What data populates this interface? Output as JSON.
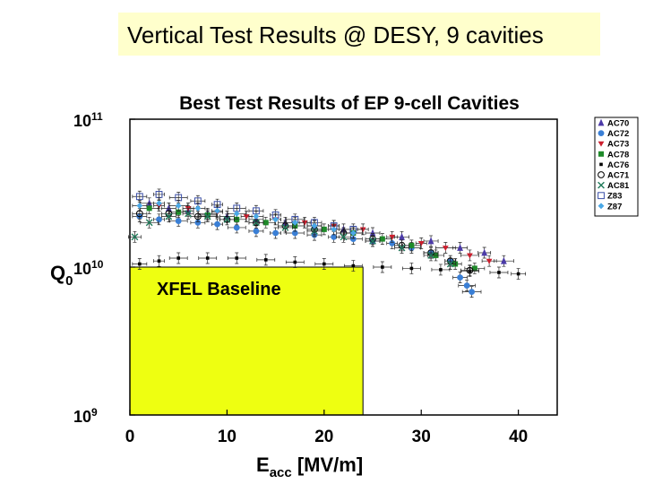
{
  "slide": {
    "title": "Vertical Test Results @ DESY, 9 cavities"
  },
  "chart_data": {
    "type": "scatter",
    "title": "Best Test Results of EP 9-cell Cavities",
    "xlabel_main": "E",
    "xlabel_sub": "acc",
    "xlabel_unit": " [MV/m]",
    "ylabel_main": "Q",
    "ylabel_sub": "0",
    "xlim": [
      0,
      44
    ],
    "ylim": [
      1000000000.0,
      100000000000.0
    ],
    "yscale": "log",
    "xticks": [
      "0",
      "10",
      "20",
      "30",
      "40"
    ],
    "yticks": [
      {
        "base": "10",
        "exp": "9"
      },
      {
        "base": "10",
        "exp": "10"
      },
      {
        "base": "10",
        "exp": "11"
      }
    ],
    "error_bars": true,
    "legend_position": "right",
    "baseline": {
      "label": "XFEL Baseline",
      "x_max": 24,
      "q_max": 10000000000.0,
      "color": "#eeff11"
    },
    "series": [
      {
        "name": "AC70",
        "marker": "triangle",
        "color": "#4b3aa8",
        "points": [
          [
            2,
            27000000000.0
          ],
          [
            4,
            25000000000.0
          ],
          [
            6,
            24000000000.0
          ],
          [
            8,
            23000000000.0
          ],
          [
            10,
            22000000000.0
          ],
          [
            13,
            21000000000.0
          ],
          [
            16,
            20000000000.0
          ],
          [
            19,
            19000000000.0
          ],
          [
            22,
            18000000000.0
          ],
          [
            25,
            17000000000.0
          ],
          [
            28,
            16000000000.0
          ],
          [
            31,
            15000000000.0
          ],
          [
            34,
            13500000000.0
          ],
          [
            36.5,
            12500000000.0
          ],
          [
            38.5,
            11000000000.0
          ]
        ]
      },
      {
        "name": "AC72",
        "marker": "circle",
        "color": "#3a7fd6",
        "points": [
          [
            1,
            22000000000.0
          ],
          [
            3,
            21000000000.0
          ],
          [
            5,
            20500000000.0
          ],
          [
            7,
            20000000000.0
          ],
          [
            9,
            19500000000.0
          ],
          [
            11,
            18500000000.0
          ],
          [
            13,
            17500000000.0
          ],
          [
            15,
            17000000000.0
          ],
          [
            17,
            17000000000.0
          ],
          [
            19,
            16500000000.0
          ],
          [
            21,
            16000000000.0
          ],
          [
            23,
            15500000000.0
          ],
          [
            25,
            15000000000.0
          ],
          [
            27,
            14500000000.0
          ],
          [
            29,
            13500000000.0
          ],
          [
            31,
            12500000000.0
          ],
          [
            33,
            11000000000.0
          ],
          [
            34,
            8500000000.0
          ],
          [
            34.7,
            7500000000.0
          ],
          [
            35.2,
            6800000000.0
          ]
        ]
      },
      {
        "name": "AC73",
        "marker": "heart",
        "color": "#cc1f2e",
        "points": [
          [
            3,
            26000000000.0
          ],
          [
            6,
            25000000000.0
          ],
          [
            9,
            23500000000.0
          ],
          [
            12,
            22000000000.0
          ],
          [
            15,
            21000000000.0
          ],
          [
            18,
            20000000000.0
          ],
          [
            21,
            19000000000.0
          ],
          [
            24,
            18000000000.0
          ],
          [
            27,
            16000000000.0
          ],
          [
            30,
            14500000000.0
          ],
          [
            32.5,
            13500000000.0
          ],
          [
            35,
            12000000000.0
          ],
          [
            37,
            11000000000.0
          ]
        ]
      },
      {
        "name": "AC78",
        "marker": "square",
        "color": "#1f8a2a",
        "points": [
          [
            2,
            25000000000.0
          ],
          [
            5,
            23500000000.0
          ],
          [
            8,
            22500000000.0
          ],
          [
            11,
            21000000000.0
          ],
          [
            14,
            20000000000.0
          ],
          [
            17,
            19000000000.0
          ],
          [
            20,
            18000000000.0
          ],
          [
            23,
            17000000000.0
          ],
          [
            26,
            15500000000.0
          ],
          [
            29,
            14000000000.0
          ],
          [
            31.5,
            12000000000.0
          ],
          [
            33.5,
            10500000000.0
          ],
          [
            35.5,
            9800000000.0
          ]
        ]
      },
      {
        "name": "AC76",
        "marker": "dot",
        "color": "#000000",
        "points": [
          [
            1,
            10500000000.0
          ],
          [
            3,
            11000000000.0
          ],
          [
            5,
            11500000000.0
          ],
          [
            8,
            11500000000.0
          ],
          [
            11,
            11500000000.0
          ],
          [
            14,
            11200000000.0
          ],
          [
            17,
            10800000000.0
          ],
          [
            20,
            10500000000.0
          ],
          [
            23,
            10200000000.0
          ],
          [
            26,
            10000000000.0
          ],
          [
            29,
            9800000000.0
          ],
          [
            32,
            9600000000.0
          ],
          [
            35,
            9400000000.0
          ],
          [
            38,
            9200000000.0
          ],
          [
            40,
            9000000000.0
          ]
        ]
      },
      {
        "name": "AC71",
        "marker": "open-circle",
        "color": "#000000",
        "points": [
          [
            1,
            23000000000.0
          ],
          [
            4,
            23000000000.0
          ],
          [
            7,
            22000000000.0
          ],
          [
            10,
            21000000000.0
          ],
          [
            13,
            20000000000.0
          ],
          [
            16,
            19000000000.0
          ],
          [
            19,
            18000000000.0
          ],
          [
            22,
            17000000000.0
          ],
          [
            25,
            15500000000.0
          ],
          [
            28,
            14000000000.0
          ],
          [
            31,
            12500000000.0
          ],
          [
            33,
            11000000000.0
          ],
          [
            35,
            9500000000.0
          ]
        ]
      },
      {
        "name": "AC81",
        "marker": "x",
        "color": "#1f7a5a",
        "points": [
          [
            0.5,
            16000000000.0
          ],
          [
            2,
            20000000000.0
          ],
          [
            4,
            22000000000.0
          ],
          [
            6,
            23000000000.0
          ],
          [
            8,
            22000000000.0
          ],
          [
            10,
            21000000000.0
          ],
          [
            13,
            20000000000.0
          ],
          [
            16,
            18500000000.0
          ],
          [
            19,
            17500000000.0
          ],
          [
            22,
            16000000000.0
          ],
          [
            25,
            15000000000.0
          ],
          [
            28,
            13500000000.0
          ],
          [
            31,
            12000000000.0
          ],
          [
            33,
            10500000000.0
          ]
        ]
      },
      {
        "name": "Z83",
        "marker": "open-square",
        "color": "#3a4fa8",
        "points": [
          [
            1,
            30000000000.0
          ],
          [
            3,
            31000000000.0
          ],
          [
            5,
            29500000000.0
          ],
          [
            7,
            28000000000.0
          ],
          [
            9,
            26500000000.0
          ],
          [
            11,
            25000000000.0
          ],
          [
            13,
            24000000000.0
          ],
          [
            15,
            22500000000.0
          ],
          [
            17,
            21000000000.0
          ],
          [
            19,
            20000000000.0
          ],
          [
            21,
            19000000000.0
          ],
          [
            23,
            18000000000.0
          ]
        ]
      },
      {
        "name": "Z87",
        "marker": "star",
        "color": "#4aa8e6",
        "points": [
          [
            1,
            26000000000.0
          ],
          [
            3,
            27000000000.0
          ],
          [
            5,
            26000000000.0
          ],
          [
            7,
            25000000000.0
          ],
          [
            9,
            24000000000.0
          ],
          [
            11,
            23000000000.0
          ],
          [
            13,
            22000000000.0
          ],
          [
            15,
            21000000000.0
          ],
          [
            17,
            20000000000.0
          ],
          [
            19,
            19000000000.0
          ],
          [
            21,
            18000000000.0
          ],
          [
            23,
            17000000000.0
          ]
        ]
      }
    ]
  }
}
